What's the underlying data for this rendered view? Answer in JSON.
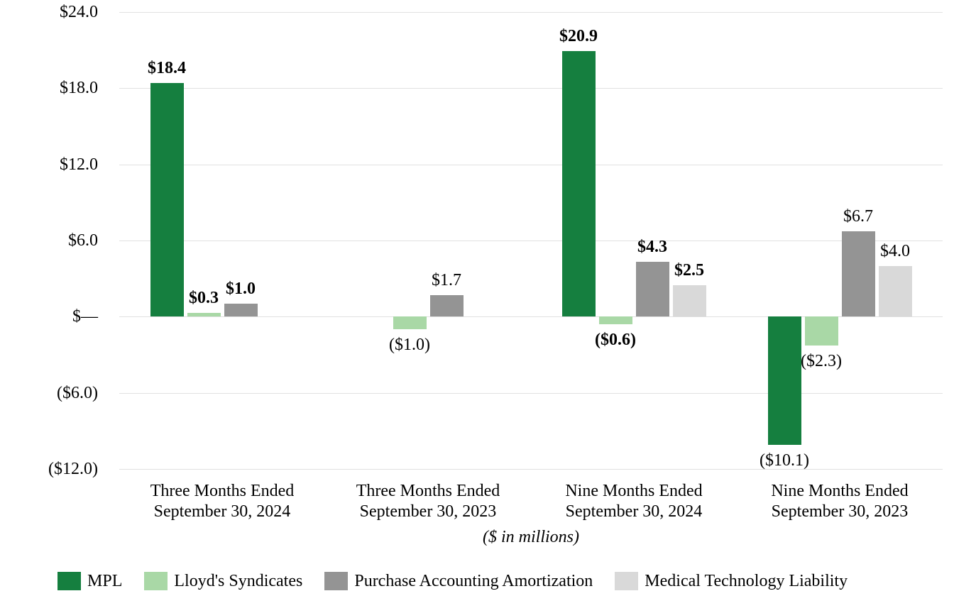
{
  "chart_data": {
    "type": "bar",
    "note": "($ in millions)",
    "grid": true,
    "legend_position": "bottom",
    "y_axis": {
      "min": -12,
      "max": 24,
      "ticks": [
        {
          "value": 24,
          "label": "$24.0"
        },
        {
          "value": 18,
          "label": "$18.0"
        },
        {
          "value": 12,
          "label": "$12.0"
        },
        {
          "value": 6,
          "label": "$6.0"
        },
        {
          "value": 0,
          "label": "$—"
        },
        {
          "value": -6,
          "label": "($6.0)"
        },
        {
          "value": -12,
          "label": "($12.0)"
        }
      ]
    },
    "categories": [
      {
        "label_lines": [
          "Three Months Ended",
          "September 30, 2024"
        ],
        "value_labels_bold": true
      },
      {
        "label_lines": [
          "Three Months Ended",
          "September 30, 2023"
        ],
        "value_labels_bold": false
      },
      {
        "label_lines": [
          "Nine Months Ended",
          "September 30, 2024"
        ],
        "value_labels_bold": true
      },
      {
        "label_lines": [
          "Nine Months Ended",
          "September 30, 2023"
        ],
        "value_labels_bold": false
      }
    ],
    "series": [
      {
        "name": "MPL",
        "color": "#157f3f",
        "values": [
          18.4,
          null,
          20.9,
          -10.1
        ],
        "labels": [
          "$18.4",
          null,
          "$20.9",
          "($10.1)"
        ]
      },
      {
        "name": "Lloyd's Syndicates",
        "color": "#a9d8a6",
        "values": [
          0.3,
          -1.0,
          -0.6,
          -2.3
        ],
        "labels": [
          "$0.3",
          "($1.0)",
          "($0.6)",
          "($2.3)"
        ]
      },
      {
        "name": "Purchase Accounting Amortization",
        "color": "#949494",
        "values": [
          1.0,
          1.7,
          4.3,
          6.7
        ],
        "labels": [
          "$1.0",
          "$1.7",
          "$4.3",
          "$6.7"
        ]
      },
      {
        "name": "Medical Technology Liability",
        "color": "#d9d9d9",
        "values": [
          null,
          null,
          2.5,
          4.0
        ],
        "labels": [
          null,
          null,
          "$2.5",
          "$4.0"
        ]
      }
    ]
  }
}
